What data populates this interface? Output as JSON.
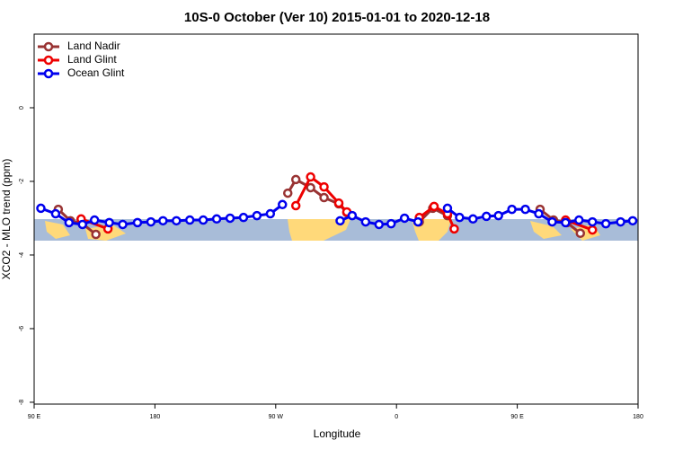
{
  "chart_data": {
    "type": "line",
    "title": "10S-0 October (Ver 10)   2015-01-01 to 2020-12-18",
    "xlabel": "Longitude",
    "ylabel": "XCO2 - MLO trend (ppm)",
    "xlim": [
      90,
      540
    ],
    "ylim": [
      -8.05,
      2
    ],
    "xticks": [
      {
        "value": 90,
        "label": "90 E"
      },
      {
        "value": 180,
        "label": "180"
      },
      {
        "value": 270,
        "label": "90 W"
      },
      {
        "value": 360,
        "label": "0"
      },
      {
        "value": 450,
        "label": "90 E"
      },
      {
        "value": 540,
        "label": "180"
      }
    ],
    "yticks": [
      -8,
      -6,
      -4,
      -2,
      0
    ],
    "legend": "top-left",
    "series": [
      {
        "name": "Land Nadir",
        "color": "#993333",
        "x": [
          108,
          117,
          126,
          136,
          null,
          279,
          285,
          296,
          306,
          317,
          323,
          null,
          377,
          387,
          398,
          null,
          467,
          477,
          487,
          497
        ],
        "values": [
          -2.76,
          -3.07,
          -3.15,
          -3.44,
          null,
          -2.32,
          -1.95,
          -2.17,
          -2.44,
          -2.61,
          -2.85,
          null,
          -3.1,
          -2.73,
          -2.93,
          null,
          -2.76,
          -3.05,
          -3.12,
          -3.41
        ]
      },
      {
        "name": "Land Glint",
        "color": "#ee0000",
        "x": [
          125,
          145,
          null,
          285,
          296,
          306,
          317,
          323,
          null,
          377,
          388,
          398,
          403,
          null,
          486,
          506
        ],
        "values": [
          -3.02,
          -3.29,
          null,
          -2.66,
          -1.88,
          -2.15,
          -2.59,
          -2.83,
          null,
          -2.98,
          -2.68,
          -2.88,
          -3.29,
          null,
          -3.05,
          -3.32
        ]
      },
      {
        "name": "Ocean Glint",
        "color": "#0000ee",
        "x": [
          95,
          106,
          116,
          126,
          135,
          146,
          156,
          167,
          177,
          186,
          196,
          206,
          216,
          226,
          236,
          246,
          256,
          266,
          275,
          null,
          318,
          327,
          337,
          347,
          356,
          366,
          376,
          null,
          398,
          407,
          417,
          427,
          436,
          446,
          456,
          466,
          476,
          486,
          496,
          506,
          516,
          527,
          536
        ],
        "values": [
          -2.73,
          -2.88,
          -3.12,
          -3.17,
          -3.05,
          -3.12,
          -3.17,
          -3.12,
          -3.1,
          -3.07,
          -3.07,
          -3.05,
          -3.05,
          -3.02,
          -3.0,
          -2.98,
          -2.93,
          -2.88,
          -2.63,
          null,
          -3.07,
          -2.93,
          -3.1,
          -3.17,
          -3.15,
          -3.0,
          -3.1,
          null,
          -2.73,
          -2.98,
          -3.02,
          -2.95,
          -2.93,
          -2.76,
          -2.76,
          -2.88,
          -3.1,
          -3.12,
          -3.05,
          -3.1,
          -3.15,
          -3.1,
          -3.07
        ]
      }
    ]
  }
}
